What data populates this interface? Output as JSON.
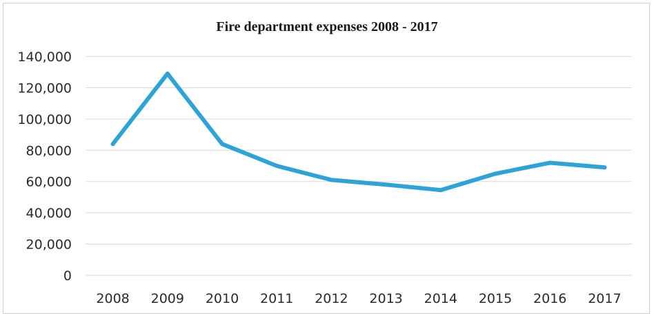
{
  "chart_data": {
    "type": "line",
    "title": "Fire department expenses 2008 - 2017",
    "xlabel": "",
    "ylabel": "",
    "categories": [
      "2008",
      "2009",
      "2010",
      "2011",
      "2012",
      "2013",
      "2014",
      "2015",
      "2016",
      "2017"
    ],
    "series": [
      {
        "values": [
          84000,
          129000,
          84000,
          70000,
          61000,
          58000,
          54500,
          65000,
          72000,
          69000
        ],
        "color": "#2ea3d8"
      }
    ],
    "ylim": [
      0,
      140000
    ],
    "yticks": [
      0,
      20000,
      40000,
      60000,
      80000,
      100000,
      120000,
      140000
    ],
    "ytick_labels": [
      "0",
      "20,000",
      "40,000",
      "60,000",
      "80,000",
      "100,000",
      "120,000",
      "140,000"
    ],
    "grid": true,
    "gridColor": "#d9d9d9",
    "legend": "none"
  }
}
